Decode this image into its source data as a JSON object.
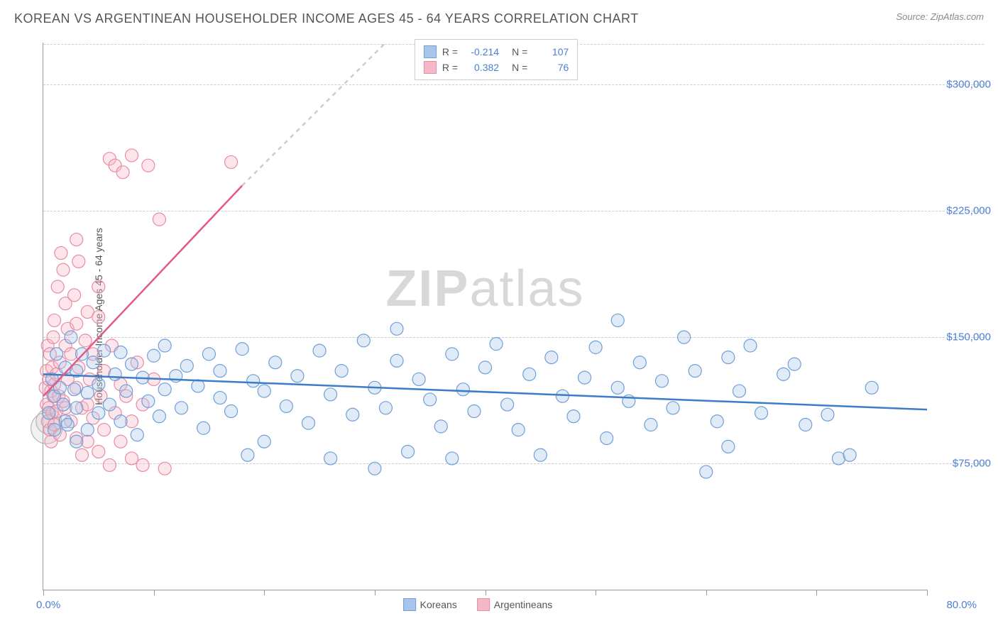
{
  "title": "KOREAN VS ARGENTINEAN HOUSEHOLDER INCOME AGES 45 - 64 YEARS CORRELATION CHART",
  "source": "Source: ZipAtlas.com",
  "y_axis_label": "Householder Income Ages 45 - 64 years",
  "x_min_label": "0.0%",
  "x_max_label": "80.0%",
  "watermark_bold": "ZIP",
  "watermark_light": "atlas",
  "chart": {
    "type": "scatter",
    "xlim": [
      0,
      80
    ],
    "ylim": [
      0,
      325000
    ],
    "y_gridlines": [
      75000,
      150000,
      225000,
      300000
    ],
    "y_tick_labels": [
      "$75,000",
      "$150,000",
      "$225,000",
      "$300,000"
    ],
    "x_ticks": [
      0,
      10,
      20,
      30,
      40,
      50,
      60,
      70,
      80
    ],
    "background_color": "#ffffff",
    "grid_color": "#cccccc",
    "axis_color": "#999999",
    "marker_radius": 9,
    "marker_border_width": 1.2,
    "marker_fill_opacity": 0.35,
    "line_width": 2.5,
    "y_tick_color": "#4a7fd6",
    "x_label_color": "#4a7fd6",
    "watermark_color": "#d8d8d8",
    "watermark_fontsize": 72
  },
  "series": {
    "koreans": {
      "label": "Koreans",
      "fill_color": "#a8c5ec",
      "border_color": "#6f9fd8",
      "line_color": "#3d7cc9",
      "R": "-0.214",
      "N": "107",
      "regression": {
        "x1": 0,
        "y1": 128000,
        "x2": 80,
        "y2": 107000
      },
      "points": [
        [
          0.5,
          105000
        ],
        [
          0.8,
          125000
        ],
        [
          1,
          95000
        ],
        [
          1,
          115000
        ],
        [
          1.2,
          140000
        ],
        [
          1.5,
          120000
        ],
        [
          1.8,
          110000
        ],
        [
          2,
          132000
        ],
        [
          2,
          100000
        ],
        [
          2.2,
          98000
        ],
        [
          2.5,
          150000
        ],
        [
          2.8,
          119000
        ],
        [
          3,
          88000
        ],
        [
          3,
          108000
        ],
        [
          3,
          130000
        ],
        [
          3.5,
          140000
        ],
        [
          4,
          117000
        ],
        [
          4,
          95000
        ],
        [
          4.5,
          135000
        ],
        [
          5,
          122000
        ],
        [
          5,
          105000
        ],
        [
          5.5,
          142000
        ],
        [
          6,
          110000
        ],
        [
          6.5,
          128000
        ],
        [
          7,
          100000
        ],
        [
          7,
          141000
        ],
        [
          7.5,
          118000
        ],
        [
          8,
          134000
        ],
        [
          8.5,
          92000
        ],
        [
          9,
          126000
        ],
        [
          9.5,
          112000
        ],
        [
          10,
          139000
        ],
        [
          10.5,
          103000
        ],
        [
          11,
          145000
        ],
        [
          11,
          119000
        ],
        [
          12,
          127000
        ],
        [
          12.5,
          108000
        ],
        [
          13,
          133000
        ],
        [
          14,
          121000
        ],
        [
          14.5,
          96000
        ],
        [
          15,
          140000
        ],
        [
          16,
          114000
        ],
        [
          16,
          130000
        ],
        [
          17,
          106000
        ],
        [
          18,
          143000
        ],
        [
          18.5,
          80000
        ],
        [
          19,
          124000
        ],
        [
          20,
          118000
        ],
        [
          20,
          88000
        ],
        [
          21,
          135000
        ],
        [
          22,
          109000
        ],
        [
          23,
          127000
        ],
        [
          24,
          99000
        ],
        [
          25,
          142000
        ],
        [
          26,
          116000
        ],
        [
          26,
          78000
        ],
        [
          27,
          130000
        ],
        [
          28,
          104000
        ],
        [
          29,
          148000
        ],
        [
          30,
          120000
        ],
        [
          30,
          72000
        ],
        [
          31,
          108000
        ],
        [
          32,
          136000
        ],
        [
          32,
          155000
        ],
        [
          33,
          82000
        ],
        [
          34,
          125000
        ],
        [
          35,
          113000
        ],
        [
          36,
          97000
        ],
        [
          37,
          140000
        ],
        [
          37,
          78000
        ],
        [
          38,
          119000
        ],
        [
          39,
          106000
        ],
        [
          40,
          132000
        ],
        [
          41,
          146000
        ],
        [
          42,
          110000
        ],
        [
          43,
          95000
        ],
        [
          44,
          128000
        ],
        [
          45,
          80000
        ],
        [
          46,
          138000
        ],
        [
          47,
          115000
        ],
        [
          48,
          103000
        ],
        [
          49,
          126000
        ],
        [
          50,
          144000
        ],
        [
          51,
          90000
        ],
        [
          52,
          160000
        ],
        [
          52,
          120000
        ],
        [
          53,
          112000
        ],
        [
          54,
          135000
        ],
        [
          55,
          98000
        ],
        [
          56,
          124000
        ],
        [
          57,
          108000
        ],
        [
          58,
          150000
        ],
        [
          59,
          130000
        ],
        [
          60,
          70000
        ],
        [
          61,
          100000
        ],
        [
          62,
          138000
        ],
        [
          62,
          85000
        ],
        [
          63,
          118000
        ],
        [
          64,
          145000
        ],
        [
          65,
          105000
        ],
        [
          67,
          128000
        ],
        [
          68,
          134000
        ],
        [
          69,
          98000
        ],
        [
          71,
          104000
        ],
        [
          72,
          78000
        ],
        [
          73,
          80000
        ],
        [
          75,
          120000
        ]
      ]
    },
    "argentineans": {
      "label": "Argentineans",
      "fill_color": "#f5b8c7",
      "border_color": "#e88ba4",
      "line_color": "#e35a84",
      "R": "0.382",
      "N": "76",
      "regression_solid": {
        "x1": 0,
        "y1": 115000,
        "x2": 18,
        "y2": 240000
      },
      "regression_dashed": {
        "x1": 18,
        "y1": 240000,
        "x2": 31,
        "y2": 325000
      },
      "points": [
        [
          0.2,
          120000
        ],
        [
          0.3,
          110000
        ],
        [
          0.3,
          130000
        ],
        [
          0.4,
          100000
        ],
        [
          0.4,
          145000
        ],
        [
          0.5,
          108000
        ],
        [
          0.5,
          125000
        ],
        [
          0.6,
          95000
        ],
        [
          0.6,
          140000
        ],
        [
          0.7,
          118000
        ],
        [
          0.7,
          88000
        ],
        [
          0.8,
          132000
        ],
        [
          0.8,
          105000
        ],
        [
          0.9,
          150000
        ],
        [
          0.9,
          115000
        ],
        [
          1,
          122000
        ],
        [
          1,
          98000
        ],
        [
          1,
          160000
        ],
        [
          1.2,
          128000
        ],
        [
          1.2,
          106000
        ],
        [
          1.3,
          180000
        ],
        [
          1.4,
          115000
        ],
        [
          1.5,
          92000
        ],
        [
          1.5,
          135000
        ],
        [
          1.6,
          200000
        ],
        [
          1.8,
          112000
        ],
        [
          1.8,
          190000
        ],
        [
          2,
          145000
        ],
        [
          2,
          108000
        ],
        [
          2,
          170000
        ],
        [
          2.2,
          125000
        ],
        [
          2.2,
          155000
        ],
        [
          2.5,
          100000
        ],
        [
          2.5,
          140000
        ],
        [
          2.8,
          175000
        ],
        [
          3,
          120000
        ],
        [
          3,
          90000
        ],
        [
          3,
          158000
        ],
        [
          3,
          208000
        ],
        [
          3.2,
          195000
        ],
        [
          3.2,
          132000
        ],
        [
          3.5,
          108000
        ],
        [
          3.5,
          80000
        ],
        [
          3.8,
          148000
        ],
        [
          4,
          110000
        ],
        [
          4,
          88000
        ],
        [
          4,
          165000
        ],
        [
          4.2,
          125000
        ],
        [
          4.5,
          102000
        ],
        [
          4.5,
          140000
        ],
        [
          5,
          82000
        ],
        [
          5,
          162000
        ],
        [
          5,
          180000
        ],
        [
          5.2,
          115000
        ],
        [
          5.5,
          95000
        ],
        [
          5.5,
          130000
        ],
        [
          6,
          74000
        ],
        [
          6,
          256000
        ],
        [
          6.2,
          145000
        ],
        [
          6.5,
          105000
        ],
        [
          6.5,
          252000
        ],
        [
          7,
          122000
        ],
        [
          7,
          88000
        ],
        [
          7.2,
          248000
        ],
        [
          7.5,
          115000
        ],
        [
          8,
          100000
        ],
        [
          8,
          258000
        ],
        [
          8,
          78000
        ],
        [
          8.5,
          135000
        ],
        [
          9,
          74000
        ],
        [
          9,
          110000
        ],
        [
          9.5,
          252000
        ],
        [
          10,
          125000
        ],
        [
          10.5,
          220000
        ],
        [
          11,
          72000
        ],
        [
          17,
          254000
        ]
      ]
    }
  },
  "legend": {
    "series1_label": "Koreans",
    "series2_label": "Argentineans"
  },
  "stats_labels": {
    "R": "R =",
    "N": "N ="
  }
}
